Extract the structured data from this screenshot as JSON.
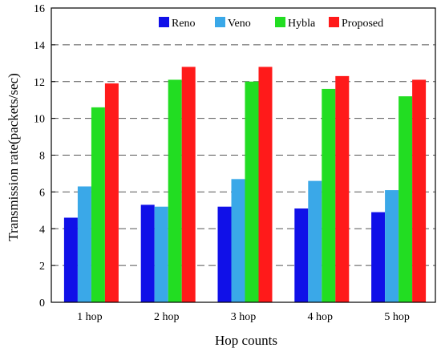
{
  "chart_data": {
    "type": "bar",
    "xlabel": "Hop counts",
    "ylabel": "Transmission rate(packets/sec)",
    "categories": [
      "1 hop",
      "2 hop",
      "3 hop",
      "4 hop",
      "5 hop"
    ],
    "ylim": [
      0,
      16
    ],
    "yticks": [
      0,
      2,
      4,
      6,
      8,
      10,
      12,
      14,
      16
    ],
    "grid": "horizontal-dashed",
    "legend_position": "top",
    "series": [
      {
        "name": "Reno",
        "color": "#1010e8",
        "values": [
          4.6,
          5.3,
          5.2,
          5.1,
          4.9
        ]
      },
      {
        "name": "Veno",
        "color": "#3aa8e8",
        "values": [
          6.3,
          5.2,
          6.7,
          6.6,
          6.1
        ]
      },
      {
        "name": "Hybla",
        "color": "#22dd22",
        "values": [
          10.6,
          12.1,
          12.0,
          11.6,
          11.2
        ]
      },
      {
        "name": "Proposed",
        "color": "#ff1a1a",
        "values": [
          11.9,
          12.8,
          12.8,
          12.3,
          12.1
        ]
      }
    ]
  }
}
